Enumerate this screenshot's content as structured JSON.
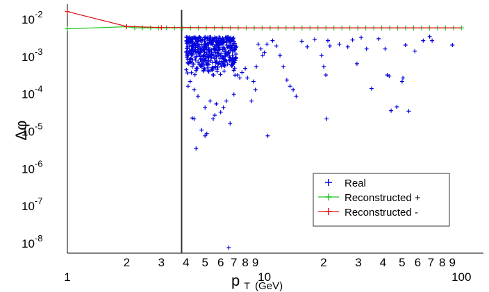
{
  "chart_data": {
    "type": "scatter",
    "xscale": "log",
    "yscale": "log",
    "xlim": [
      1,
      110
    ],
    "ylim": [
      5e-09,
      0.02
    ],
    "xlabel": {
      "main": "p",
      "sub": "T",
      "unit": "(GeV)"
    },
    "ylabel": "Δφ",
    "x_tick_labels": [
      {
        "v": 1,
        "t": "1",
        "major": true
      },
      {
        "v": 2,
        "t": "2"
      },
      {
        "v": 3,
        "t": "3"
      },
      {
        "v": 4,
        "t": "4"
      },
      {
        "v": 5,
        "t": "5"
      },
      {
        "v": 6,
        "t": "6"
      },
      {
        "v": 7,
        "t": "7"
      },
      {
        "v": 8,
        "t": "8"
      },
      {
        "v": 9,
        "t": "9"
      },
      {
        "v": 10,
        "t": "10",
        "major": true
      },
      {
        "v": 20,
        "t": "2"
      },
      {
        "v": 30,
        "t": "3"
      },
      {
        "v": 40,
        "t": "4"
      },
      {
        "v": 50,
        "t": "5"
      },
      {
        "v": 60,
        "t": "6"
      },
      {
        "v": 70,
        "t": "7"
      },
      {
        "v": 80,
        "t": "8"
      },
      {
        "v": 90,
        "t": "9"
      },
      {
        "v": 100,
        "t": "100",
        "major": true
      }
    ],
    "y_tick_labels": [
      {
        "v": 0.01,
        "base": "10",
        "exp": "-2"
      },
      {
        "v": 0.001,
        "base": "10",
        "exp": "-3"
      },
      {
        "v": 0.0001,
        "base": "10",
        "exp": "-4"
      },
      {
        "v": 1e-05,
        "base": "10",
        "exp": "-5"
      },
      {
        "v": 1e-06,
        "base": "10",
        "exp": "-6"
      },
      {
        "v": 1e-07,
        "base": "10",
        "exp": "-7"
      },
      {
        "v": 1e-08,
        "base": "10",
        "exp": "-8"
      }
    ],
    "cut_line_x": 3.8,
    "legend_position": "lower-right",
    "series": [
      {
        "name": "Real",
        "color": "#0000dd",
        "marker": "plus",
        "random_cluster": {
          "x_range": [
            4.0,
            7.2
          ],
          "log10y_range": [
            -3.55,
            -2.5
          ],
          "count": 420,
          "seed": 7
        },
        "points": [
          [
            4.1,
            0.00015
          ],
          [
            4.2,
            0.0002
          ],
          [
            4.3,
            0.0005
          ],
          [
            4.2,
            0.0008
          ],
          [
            4.4,
            0.00012
          ],
          [
            4.3,
            2.1e-05
          ],
          [
            4.4,
            2e-05
          ],
          [
            4.5,
            3.2e-06
          ],
          [
            4.6,
            8e-05
          ],
          [
            4.8,
            1e-05
          ],
          [
            5.0,
            4e-05
          ],
          [
            5.1,
            8e-06
          ],
          [
            5.0,
            7e-06
          ],
          [
            5.3,
            6e-05
          ],
          [
            5.5,
            2e-05
          ],
          [
            5.6,
            2.5e-05
          ],
          [
            5.7,
            5e-05
          ],
          [
            6.0,
            3e-05
          ],
          [
            6.2,
            4e-05
          ],
          [
            6.4,
            6e-05
          ],
          [
            6.7,
            1.5e-05
          ],
          [
            7.0,
            9e-05
          ],
          [
            7.3,
            0.0003
          ],
          [
            7.5,
            0.00025
          ],
          [
            7.7,
            0.00035
          ],
          [
            8.0,
            0.00045
          ],
          [
            8.2,
            0.00025
          ],
          [
            8.6,
            6e-05
          ],
          [
            8.8,
            0.0002
          ],
          [
            9.0,
            0.00012
          ],
          [
            9.1,
            0.0005
          ],
          [
            9.3,
            0.002
          ],
          [
            9.6,
            0.0015
          ],
          [
            9.8,
            0.001
          ],
          [
            10.0,
            0.0012
          ],
          [
            10.3,
            0.002
          ],
          [
            10.4,
            7e-06
          ],
          [
            11.0,
            0.0025
          ],
          [
            11.5,
            0.0018
          ],
          [
            12.0,
            0.001
          ],
          [
            12.5,
            0.0005
          ],
          [
            13.0,
            0.00022
          ],
          [
            13.5,
            0.00015
          ],
          [
            14.0,
            0.00012
          ],
          [
            14.5,
            8e-05
          ],
          [
            15.5,
            0.0024
          ],
          [
            16.5,
            0.0017
          ],
          [
            18.0,
            0.0027
          ],
          [
            19.5,
            0.001
          ],
          [
            20.0,
            0.0005
          ],
          [
            20.5,
            0.0003
          ],
          [
            20.7,
            2e-05
          ],
          [
            21.0,
            0.0025
          ],
          [
            21.5,
            0.0018
          ],
          [
            24.0,
            0.002
          ],
          [
            26.5,
            0.0017
          ],
          [
            28.0,
            0.0026
          ],
          [
            29.5,
            0.0006
          ],
          [
            31.0,
            0.003
          ],
          [
            33.0,
            0.0015
          ],
          [
            35.0,
            0.00013
          ],
          [
            38.0,
            0.0028
          ],
          [
            41.0,
            0.0015
          ],
          [
            42.0,
            0.0003
          ],
          [
            43.0,
            0.00028
          ],
          [
            44.0,
            3.3e-05
          ],
          [
            47.0,
            4.2e-05
          ],
          [
            50.0,
            0.0002
          ],
          [
            50.5,
            0.00025
          ],
          [
            52.0,
            0.0019
          ],
          [
            54.0,
            3.2e-05
          ],
          [
            58.0,
            0.0013
          ],
          [
            64.0,
            0.0025
          ],
          [
            69.0,
            0.0032
          ],
          [
            71.0,
            0.0025
          ],
          [
            90.0,
            0.0019
          ],
          [
            6.6,
            7e-09
          ]
        ]
      },
      {
        "name": "Reconstructed +",
        "color": "#1ec81e",
        "marker": "plus-line",
        "grid": {
          "from": 2,
          "to": 100,
          "per_decade": 25,
          "y": 0.0055
        },
        "points": [
          [
            1,
            0.0052
          ],
          [
            2,
            0.0059
          ]
        ]
      },
      {
        "name": "Reconstructed -",
        "color": "#e01010",
        "marker": "plus-line",
        "points": [
          [
            1,
            0.015
          ],
          [
            2,
            0.006
          ],
          [
            3,
            0.0056
          ],
          [
            4,
            0.0056
          ],
          [
            5,
            0.00555
          ],
          [
            6,
            0.00555
          ],
          [
            8,
            0.0055
          ],
          [
            10,
            0.0055
          ],
          [
            20,
            0.0055
          ],
          [
            50,
            0.0055
          ],
          [
            100,
            0.0055
          ]
        ]
      }
    ]
  }
}
